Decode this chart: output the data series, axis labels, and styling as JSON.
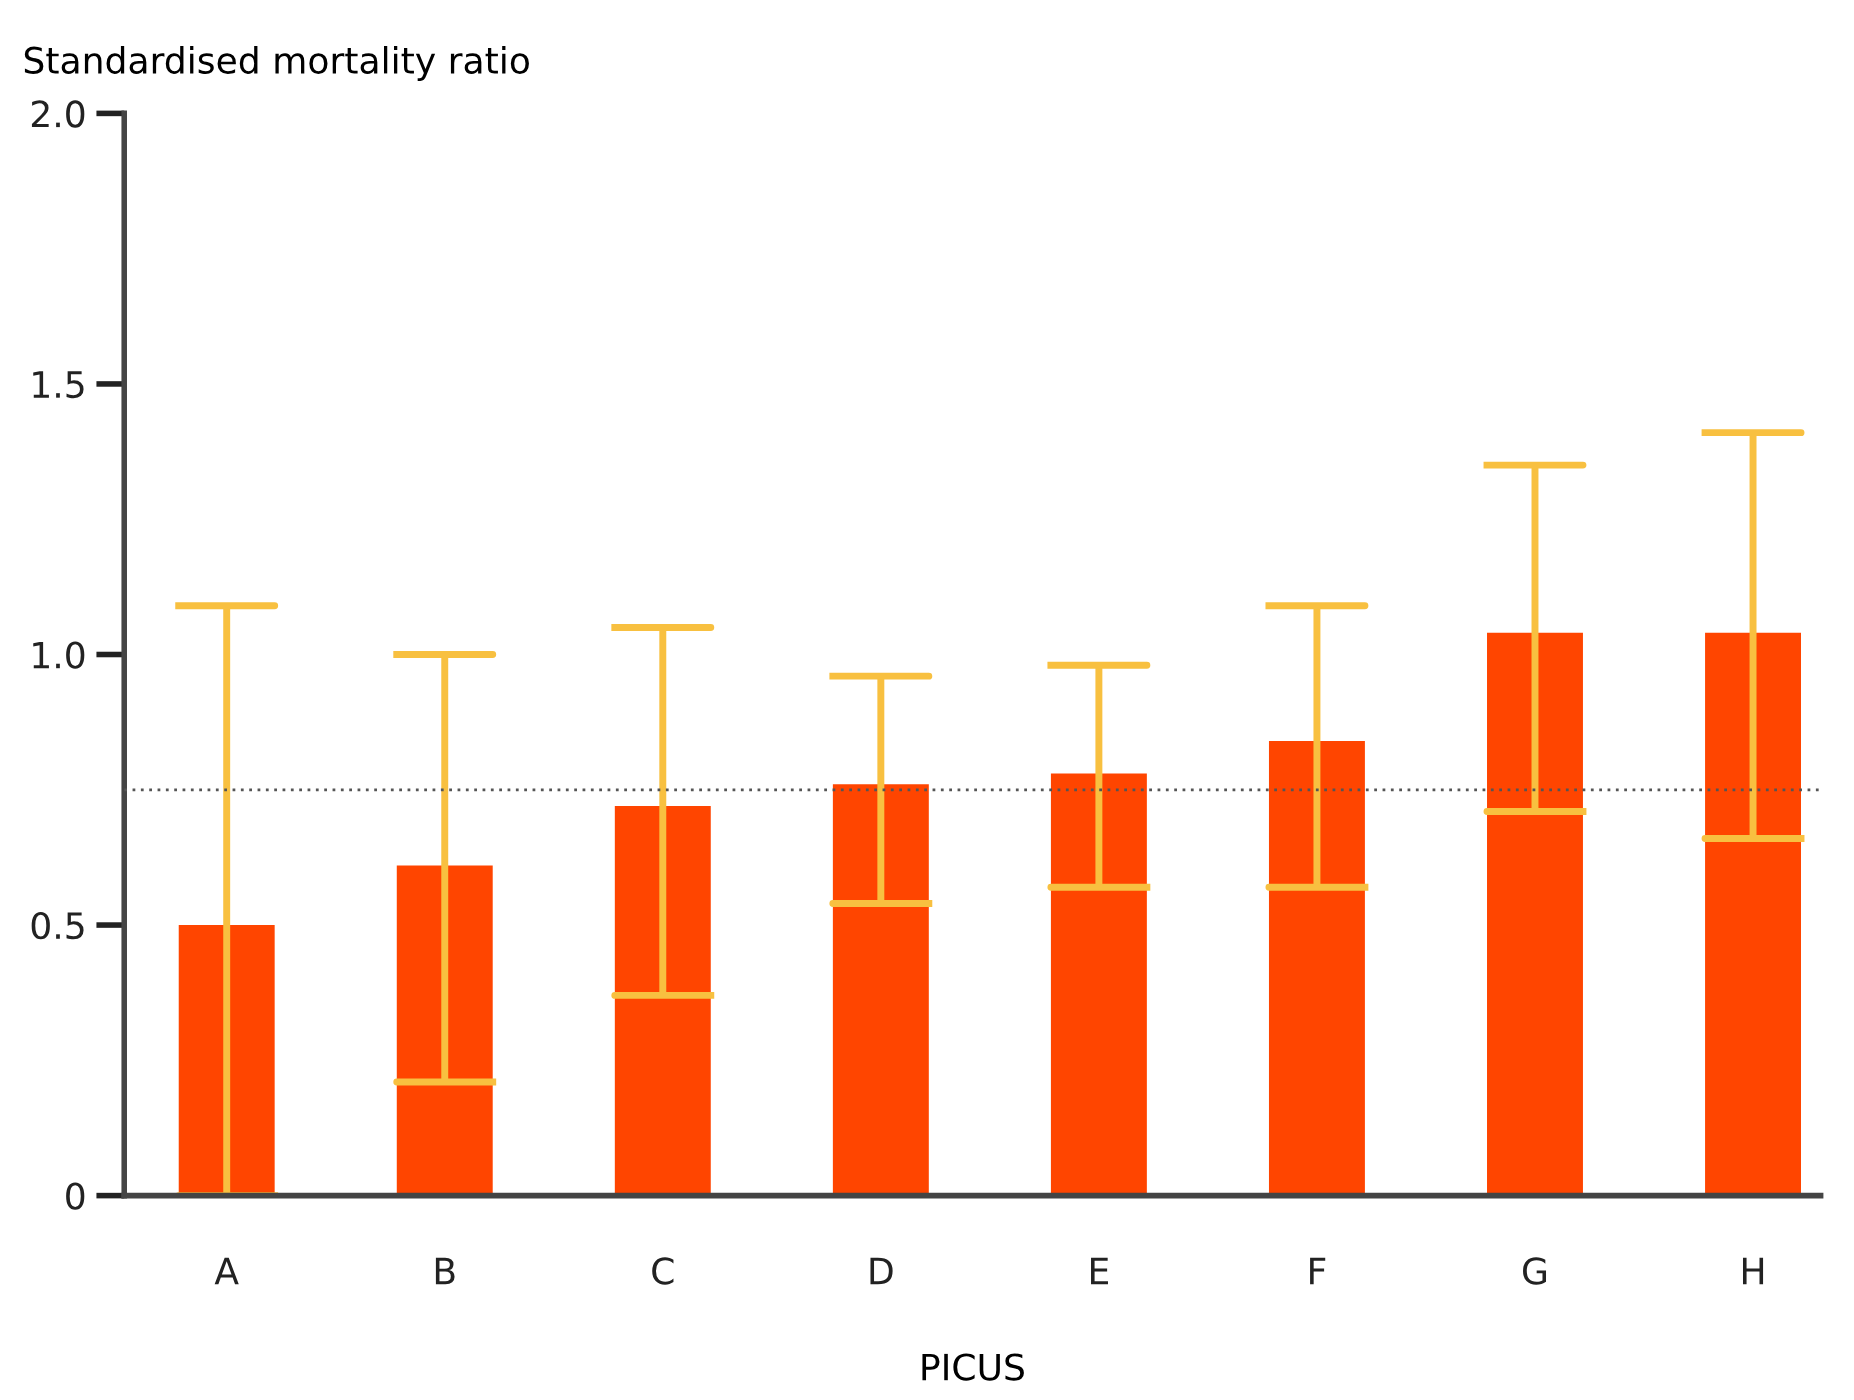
{
  "chart_data": {
    "type": "bar",
    "ylabel": "Standardised mortality ratio",
    "xlabel": "PICUS",
    "categories": [
      "A",
      "B",
      "C",
      "D",
      "E",
      "F",
      "G",
      "H"
    ],
    "values": [
      0.5,
      0.61,
      0.72,
      0.76,
      0.78,
      0.84,
      1.04,
      1.04
    ],
    "errors": [
      [
        0,
        1.09
      ],
      [
        0.21,
        1.0
      ],
      [
        0.37,
        1.05
      ],
      [
        0.54,
        0.96
      ],
      [
        0.57,
        0.98
      ],
      [
        0.57,
        1.09
      ],
      [
        0.71,
        1.35
      ],
      [
        0.66,
        1.41
      ]
    ],
    "color": "#ff4500",
    "ylim": [
      0,
      2.0
    ],
    "yticks": [
      0,
      {
        "value": 0.5,
        "label": "0.5"
      },
      {
        "value": 1.0,
        "label": "1.0"
      },
      {
        "value": 1.5,
        "label": "1.5"
      },
      {
        "value": 2.0,
        "label": "2.0"
      }
    ],
    "ref_lines": [
      {
        "axis": "y",
        "value": 0.75,
        "label": null,
        "color": "#555555",
        "line_style": "dotted"
      }
    ],
    "grid": false,
    "legend": false
  }
}
